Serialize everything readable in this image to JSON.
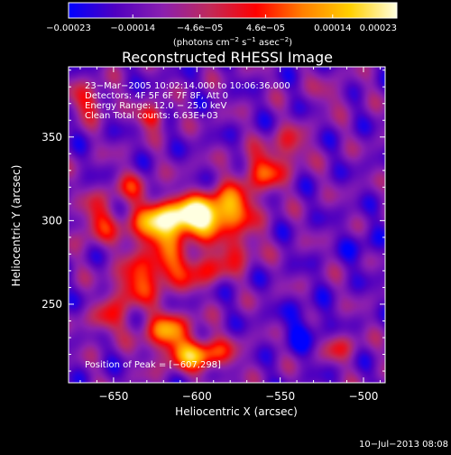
{
  "chart_data": {
    "type": "heatmap",
    "title": "Reconstructed RHESSI Image",
    "xlabel": "Heliocentric X (arcsec)",
    "ylabel": "Heliocentric Y (arcsec)",
    "xlim": [
      -677,
      -487
    ],
    "ylim": [
      203,
      392
    ],
    "x_ticks": [
      -650,
      -600,
      -550,
      -500
    ],
    "x_tick_labels": [
      "−650",
      "−600",
      "−550",
      "−500"
    ],
    "y_ticks": [
      250,
      300,
      350
    ],
    "y_tick_labels": [
      "250",
      "300",
      "350"
    ],
    "colorbar": {
      "min": -0.00023,
      "max": 0.00023,
      "ticks": [
        -0.00023,
        -0.00014,
        -4.6e-05,
        4.6e-05,
        0.00014,
        0.00023
      ],
      "tick_labels": [
        "−0.00023",
        "−0.00014",
        "−4.6e−05",
        "4.6e−05",
        "0.00014",
        "0.00023"
      ],
      "units_prefix": "(photons cm",
      "units_exp1": "−2",
      "units_mid": " s",
      "units_exp2": "−1",
      "units_mid2": " asec",
      "units_exp3": "−2",
      "units_suffix": ")",
      "colors": [
        "#0000ff",
        "#5000c0",
        "#8a1fb0",
        "#c02a5a",
        "#ff0000",
        "#ff8000",
        "#ffd000",
        "#ffffe0"
      ]
    },
    "annotations": [
      "23−Mar−2005 10:02:14.000 to 10:06:36.000",
      "Detectors: 4F 5F 6F 7F 8F, Att 0",
      "Energy Range: 12.0 − 25.0 keV",
      "Clean     Total counts: 6.63E+03"
    ],
    "peak_label": "Position of Peak = [−607,298]",
    "peak": [
      -607,
      298
    ],
    "sources": [
      {
        "x": -603,
        "y": 302,
        "amp": 1.0,
        "sx": 14,
        "sy": 8
      },
      {
        "x": -625,
        "y": 295,
        "amp": 0.65,
        "sx": 12,
        "sy": 10
      },
      {
        "x": -580,
        "y": 308,
        "amp": 0.6,
        "sx": 12,
        "sy": 9
      },
      {
        "x": -620,
        "y": 270,
        "amp": 0.55,
        "sx": 10,
        "sy": 8
      },
      {
        "x": -595,
        "y": 272,
        "amp": 0.45,
        "sx": 9,
        "sy": 7
      },
      {
        "x": -640,
        "y": 260,
        "amp": 0.5,
        "sx": 8,
        "sy": 9
      },
      {
        "x": -618,
        "y": 235,
        "amp": 0.6,
        "sx": 10,
        "sy": 8
      },
      {
        "x": -600,
        "y": 220,
        "amp": 0.7,
        "sx": 14,
        "sy": 7
      },
      {
        "x": -655,
        "y": 240,
        "amp": 0.35,
        "sx": 8,
        "sy": 7
      },
      {
        "x": -660,
        "y": 300,
        "amp": 0.4,
        "sx": 8,
        "sy": 10
      },
      {
        "x": -560,
        "y": 330,
        "amp": 0.5,
        "sx": 10,
        "sy": 8
      },
      {
        "x": -545,
        "y": 345,
        "amp": 0.35,
        "sx": 8,
        "sy": 7
      },
      {
        "x": -627,
        "y": 362,
        "amp": 0.5,
        "sx": 6,
        "sy": 5
      },
      {
        "x": -665,
        "y": 372,
        "amp": 0.4,
        "sx": 8,
        "sy": 7
      },
      {
        "x": -575,
        "y": 283,
        "amp": 0.4,
        "sx": 8,
        "sy": 7
      },
      {
        "x": -640,
        "y": 320,
        "amp": 0.3,
        "sx": 8,
        "sy": 7
      },
      {
        "x": -515,
        "y": 225,
        "amp": 0.3,
        "sx": 8,
        "sy": 7
      },
      {
        "x": -520,
        "y": 375,
        "amp": 0.18,
        "sx": 8,
        "sy": 6
      }
    ]
  },
  "footer": {
    "date": "10−Jul−2013 08:08"
  }
}
